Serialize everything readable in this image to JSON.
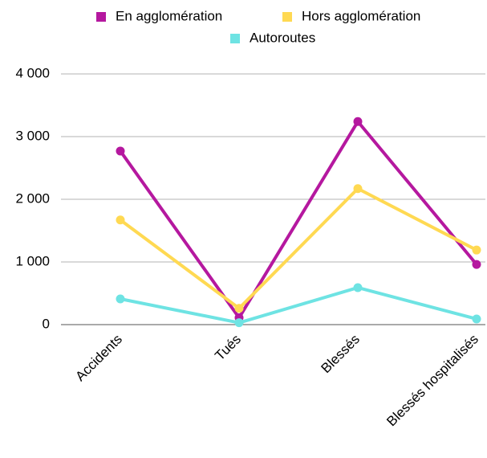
{
  "chart_data": {
    "type": "line",
    "categories": [
      "Accidents",
      "Tués",
      "Blessés",
      "Blessés hospitalisés"
    ],
    "series": [
      {
        "name": "En agglomération",
        "color": "#b5189f",
        "values": [
          2770,
          110,
          3240,
          960
        ]
      },
      {
        "name": "Hors agglomération",
        "color": "#ffd952",
        "values": [
          1670,
          260,
          2170,
          1190
        ]
      },
      {
        "name": "Autoroutes",
        "color": "#6ee3e3",
        "values": [
          410,
          30,
          590,
          90
        ]
      }
    ],
    "ylim": [
      0,
      4000
    ],
    "yticks": [
      0,
      {
        "value": 1000,
        "label": "1 000"
      },
      {
        "value": 2000,
        "label": "2 000"
      },
      {
        "value": 3000,
        "label": "3 000"
      },
      {
        "value": 4000,
        "label": "4 000"
      }
    ],
    "grid": true,
    "legend": "top"
  }
}
